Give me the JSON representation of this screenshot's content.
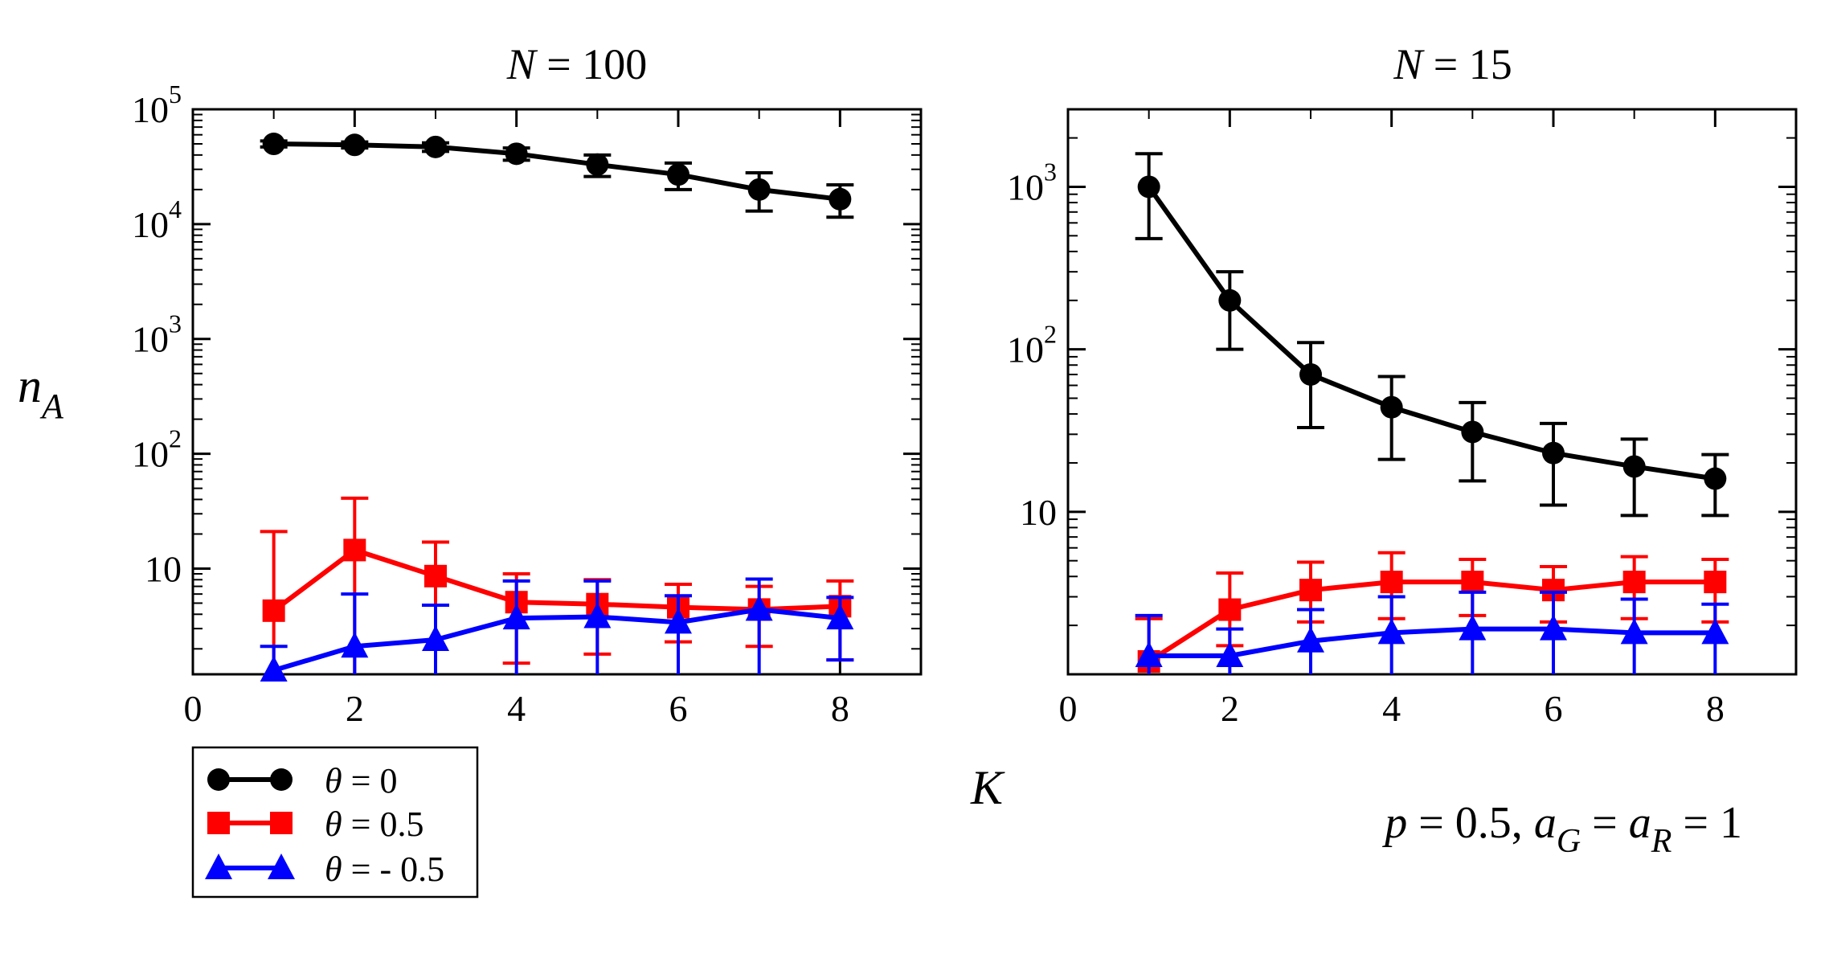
{
  "chart_data": [
    {
      "type": "line",
      "title": {
        "var": "N",
        "text": " = 100"
      },
      "yscale": "log",
      "xlim": [
        0,
        9
      ],
      "ylim": [
        1.2,
        100000
      ],
      "xticks": [
        0,
        2,
        4,
        6,
        8
      ],
      "yticks": [
        {
          "value": 10,
          "base": "10",
          "exp": ""
        },
        {
          "value": 100,
          "base": "10",
          "exp": "2"
        },
        {
          "value": 1000,
          "base": "10",
          "exp": "3"
        },
        {
          "value": 10000,
          "base": "10",
          "exp": "4"
        },
        {
          "value": 100000,
          "base": "10",
          "exp": "5"
        }
      ],
      "series": [
        {
          "name": "θ = 0",
          "color": "#000000",
          "marker": "circle",
          "x": [
            1,
            2,
            3,
            4,
            5,
            6,
            7,
            8
          ],
          "y": [
            50000,
            49000,
            47000,
            41000,
            33000,
            27000,
            20000,
            16500
          ],
          "err_low": [
            47000,
            46000,
            43000,
            36000,
            26000,
            20000,
            13000,
            11500
          ],
          "err_high": [
            53000,
            52000,
            51000,
            46000,
            40000,
            34000,
            28000,
            22000
          ]
        },
        {
          "name": "θ = 0.5",
          "color": "#ff0000",
          "marker": "square",
          "x": [
            1,
            2,
            3,
            4,
            5,
            6,
            7,
            8
          ],
          "y": [
            4.3,
            14.5,
            8.6,
            5.1,
            4.9,
            4.6,
            4.4,
            4.7
          ],
          "err_low": [
            1.2,
            1.2,
            1.2,
            1.5,
            1.8,
            2.3,
            2.1,
            1.6
          ],
          "err_high": [
            21,
            41,
            17,
            9,
            8,
            7.3,
            7,
            7.8
          ]
        },
        {
          "name": "θ = - 0.5",
          "color": "#0000ff",
          "marker": "triangle",
          "x": [
            1,
            2,
            3,
            4,
            5,
            6,
            7,
            8
          ],
          "y": [
            1.3,
            2.1,
            2.4,
            3.7,
            3.8,
            3.4,
            4.4,
            3.7
          ],
          "err_low": [
            1.2,
            1.2,
            1.2,
            1.2,
            1.2,
            1.2,
            1.2,
            1.6
          ],
          "err_high": [
            2.1,
            6,
            4.8,
            7.8,
            7.8,
            5.8,
            8.1,
            5.6
          ]
        }
      ]
    },
    {
      "type": "line",
      "title": {
        "var": "N",
        "text": " = 15"
      },
      "yscale": "log",
      "xlim": [
        0,
        9
      ],
      "ylim": [
        1,
        3000
      ],
      "xticks": [
        0,
        2,
        4,
        6,
        8
      ],
      "yticks": [
        {
          "value": 10,
          "base": "10",
          "exp": ""
        },
        {
          "value": 100,
          "base": "10",
          "exp": "2"
        },
        {
          "value": 1000,
          "base": "10",
          "exp": "3"
        }
      ],
      "series": [
        {
          "name": "θ = 0",
          "color": "#000000",
          "marker": "circle",
          "x": [
            1,
            2,
            3,
            4,
            5,
            6,
            7,
            8
          ],
          "y": [
            1000,
            200,
            70,
            44,
            31,
            23,
            19,
            16
          ],
          "err_low": [
            480,
            100,
            33,
            21,
            15.5,
            11,
            9.5,
            9.5
          ],
          "err_high": [
            1600,
            300,
            110,
            68,
            47,
            35,
            28,
            22.5
          ]
        },
        {
          "name": "θ = 0.5",
          "color": "#ff0000",
          "marker": "square",
          "x": [
            1,
            2,
            3,
            4,
            5,
            6,
            7,
            8
          ],
          "y": [
            1.2,
            2.5,
            3.3,
            3.7,
            3.7,
            3.3,
            3.7,
            3.7
          ],
          "err_low": [
            1.0,
            1.5,
            2.1,
            2.2,
            2.3,
            2.1,
            2.2,
            2.1
          ],
          "err_high": [
            2.2,
            4.2,
            4.9,
            5.6,
            5.1,
            4.6,
            5.3,
            5.1
          ]
        },
        {
          "name": "θ = - 0.5",
          "color": "#0000ff",
          "marker": "triangle",
          "x": [
            1,
            2,
            3,
            4,
            5,
            6,
            7,
            8
          ],
          "y": [
            1.3,
            1.3,
            1.6,
            1.8,
            1.9,
            1.9,
            1.8,
            1.8
          ],
          "err_low": [
            1.0,
            1.0,
            1.0,
            1.0,
            1.0,
            1.0,
            1.0,
            1.0
          ],
          "err_high": [
            2.3,
            1.9,
            2.5,
            3.0,
            3.2,
            3.2,
            2.9,
            2.7
          ]
        }
      ]
    }
  ],
  "axis_labels": {
    "y": {
      "var": "n",
      "sub": "A"
    },
    "x": {
      "var": "K"
    }
  },
  "legend": {
    "entries": [
      {
        "var": "θ",
        "text": " = 0",
        "color": "#000000",
        "marker": "circle"
      },
      {
        "var": "θ",
        "text": " = 0.5",
        "color": "#ff0000",
        "marker": "square"
      },
      {
        "var": "θ",
        "text": " = - 0.5",
        "color": "#0000ff",
        "marker": "triangle"
      }
    ]
  },
  "params": {
    "p_var": "p",
    "p_text": " = 0.5, ",
    "a1": "a",
    "g": "G",
    "eq1": " = ",
    "a2": "a",
    "r": "R",
    "eq2": " = 1"
  }
}
